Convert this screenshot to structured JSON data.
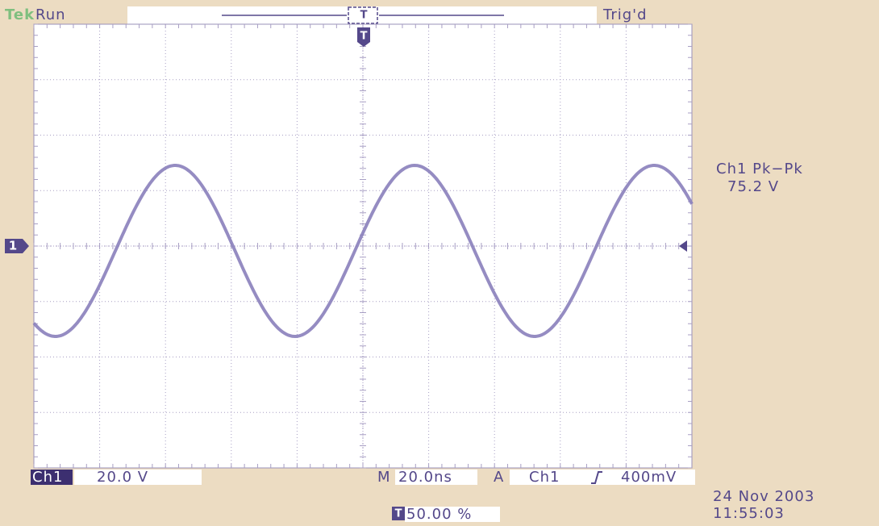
{
  "header": {
    "brand": "Tek",
    "state": "Run",
    "trigger_status": "Trig'd"
  },
  "measurement": {
    "label": "Ch1 Pk−Pk",
    "value": "75.2 V"
  },
  "markers": {
    "channel": "1",
    "trigger": "T"
  },
  "footer": {
    "channel": "Ch1",
    "scale": "20.0 V",
    "timebase_label": "M",
    "timebase": "20.0ns",
    "trigger_label": "A",
    "trigger_source": "Ch1",
    "trigger_level": "400mV",
    "trigger_position": "50.00 %",
    "date": "24 Nov 2003",
    "time": "11:55:03"
  }
}
